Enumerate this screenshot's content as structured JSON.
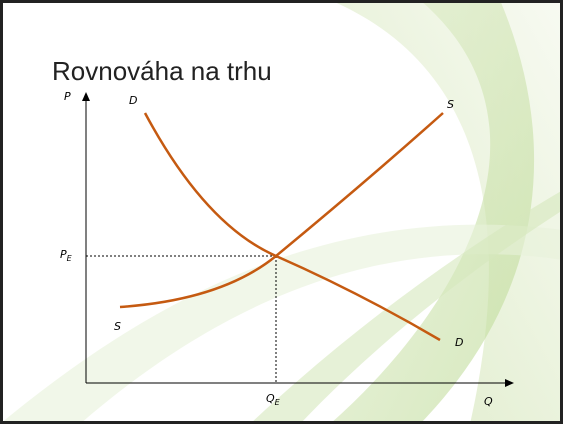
{
  "title": "Rovnováha na trhu",
  "axes": {
    "y": "P",
    "x": "Q"
  },
  "curves": {
    "demand_top": "D",
    "demand_bottom": "D",
    "supply_top": "S",
    "supply_bottom": "S"
  },
  "equilibrium": {
    "price": {
      "main": "P",
      "sub": "E"
    },
    "quantity": {
      "main": "Q",
      "sub": "E"
    }
  }
}
